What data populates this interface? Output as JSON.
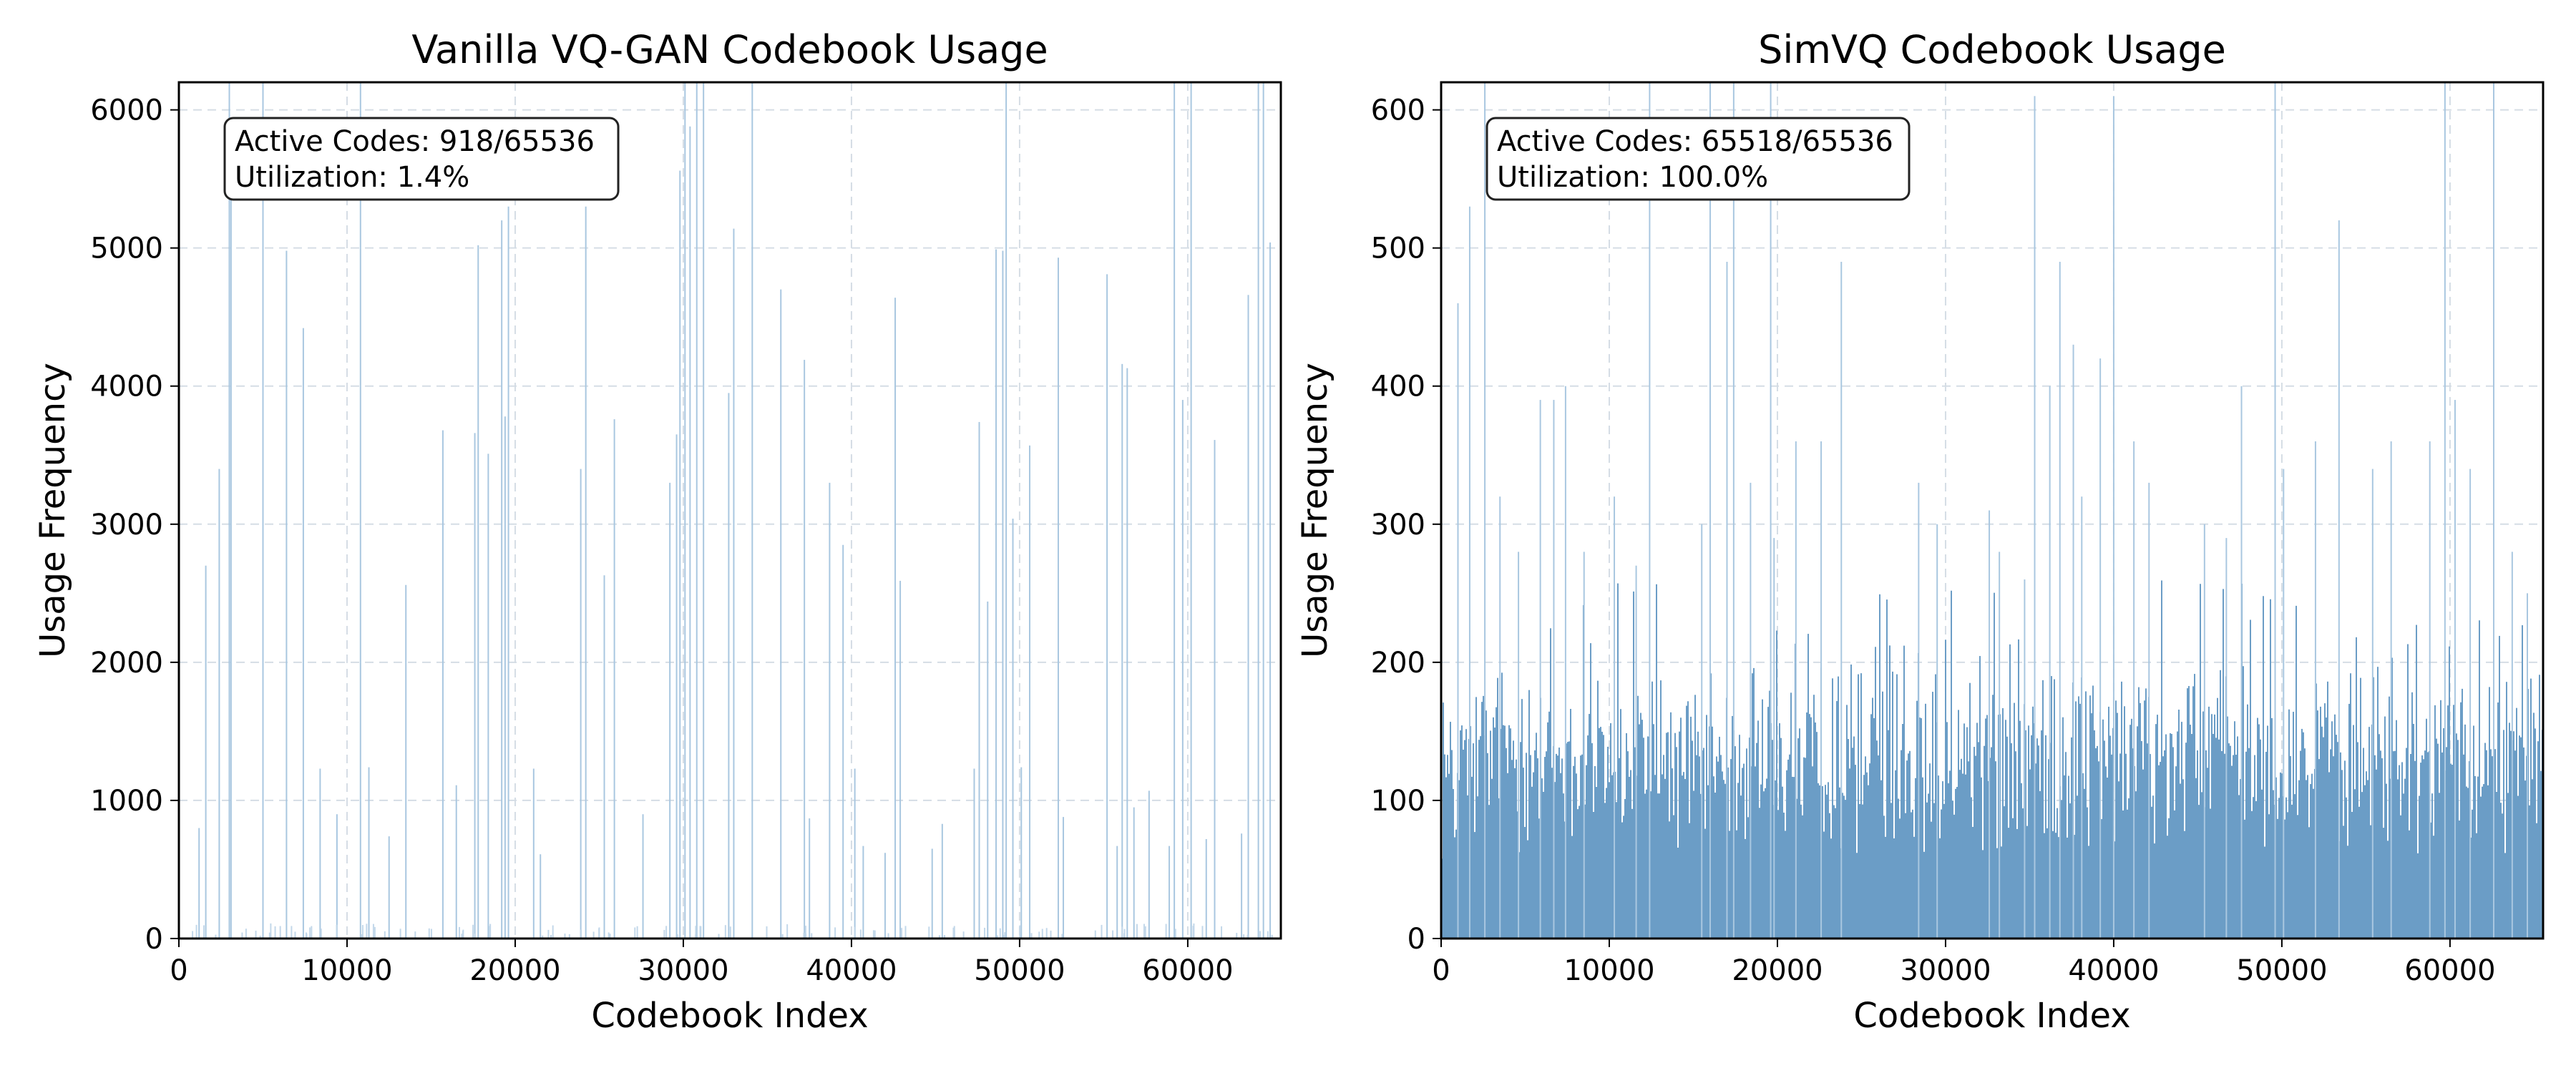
{
  "chart_data": [
    {
      "type": "bar",
      "title": "Vanilla VQ-GAN Codebook Usage",
      "xlabel": "Codebook Index",
      "ylabel": "Usage Frequency",
      "xlim": [
        0,
        65536
      ],
      "ylim": [
        0,
        6200
      ],
      "xticks": [
        0,
        10000,
        20000,
        30000,
        40000,
        50000,
        60000
      ],
      "yticks": [
        0,
        1000,
        2000,
        3000,
        4000,
        5000,
        6000
      ],
      "grid": true,
      "bar_color": "#6b9dc6",
      "annotation": {
        "line1": "Active Codes: 918/65536",
        "line2": "Utilization: 1.4%"
      },
      "x": [
        1200,
        1600,
        2400,
        3000,
        3100,
        5000,
        6400,
        7400,
        8400,
        9400,
        10800,
        11300,
        12500,
        13500,
        15700,
        16500,
        17600,
        17800,
        18400,
        19200,
        19400,
        19600,
        21100,
        21500,
        23900,
        24200,
        25300,
        25900,
        27600,
        29200,
        29600,
        29800,
        30100,
        30400,
        30800,
        31200,
        32700,
        33000,
        34100,
        35800,
        37200,
        37500,
        38700,
        39500,
        40200,
        40700,
        42000,
        42600,
        42900,
        44800,
        45400,
        47300,
        47600,
        48100,
        48600,
        49000,
        49200,
        49600,
        50100,
        50600,
        52300,
        52600,
        55200,
        55800,
        56100,
        56400,
        56800,
        57700,
        58900,
        59200,
        59700,
        60200,
        61100,
        61600,
        63200,
        63600,
        64200,
        64500,
        64900
      ],
      "values": [
        800,
        2700,
        3400,
        6200,
        5400,
        6200,
        4980,
        4420,
        1230,
        900,
        6200,
        1240,
        740,
        2560,
        3680,
        1110,
        3660,
        5020,
        3510,
        5200,
        3780,
        5300,
        1230,
        610,
        3400,
        5300,
        2630,
        3760,
        900,
        3300,
        3650,
        5560,
        6200,
        5880,
        6200,
        6200,
        3950,
        5140,
        6200,
        4700,
        4190,
        870,
        3300,
        2850,
        1230,
        670,
        620,
        4640,
        2590,
        650,
        830,
        1230,
        3740,
        2440,
        4990,
        4980,
        6200,
        3040,
        1240,
        3570,
        4930,
        880,
        4810,
        670,
        4160,
        4130,
        950,
        1070,
        670,
        6200,
        3900,
        6200,
        720,
        3610,
        760,
        4660,
        6200,
        6200,
        5040
      ]
    },
    {
      "type": "bar",
      "title": "SimVQ Codebook Usage",
      "xlabel": "Codebook Index",
      "ylabel": "Usage Frequency",
      "xlim": [
        0,
        65536
      ],
      "ylim": [
        0,
        620
      ],
      "xticks": [
        0,
        10000,
        20000,
        30000,
        40000,
        50000,
        60000
      ],
      "yticks": [
        0,
        100,
        200,
        300,
        400,
        500,
        600
      ],
      "grid": true,
      "bar_color": "#6b9dc6",
      "annotation": {
        "line1": "Active Codes: 65518/65536",
        "line2": "Utilization: 100.0%"
      },
      "base_level": 130,
      "x": [
        1000,
        1700,
        2600,
        3500,
        4600,
        5900,
        6700,
        7400,
        8500,
        10300,
        11600,
        12400,
        15500,
        16000,
        17000,
        17400,
        18400,
        19600,
        19800,
        21100,
        22600,
        23800,
        28400,
        29500,
        32600,
        33200,
        34700,
        35300,
        36200,
        36800,
        37600,
        38100,
        39200,
        40000,
        41200,
        42100,
        45400,
        46700,
        47600,
        49600,
        50100,
        52000,
        53400,
        55400,
        56500,
        58800,
        59700,
        60300,
        61200,
        62600,
        63700,
        64600
      ],
      "values": [
        460,
        530,
        620,
        320,
        280,
        390,
        390,
        400,
        280,
        320,
        270,
        620,
        300,
        620,
        490,
        620,
        330,
        620,
        290,
        360,
        360,
        490,
        330,
        300,
        310,
        280,
        260,
        610,
        400,
        490,
        430,
        320,
        420,
        610,
        360,
        330,
        300,
        290,
        400,
        620,
        340,
        360,
        520,
        340,
        360,
        360,
        620,
        390,
        340,
        620,
        280,
        250
      ]
    }
  ]
}
